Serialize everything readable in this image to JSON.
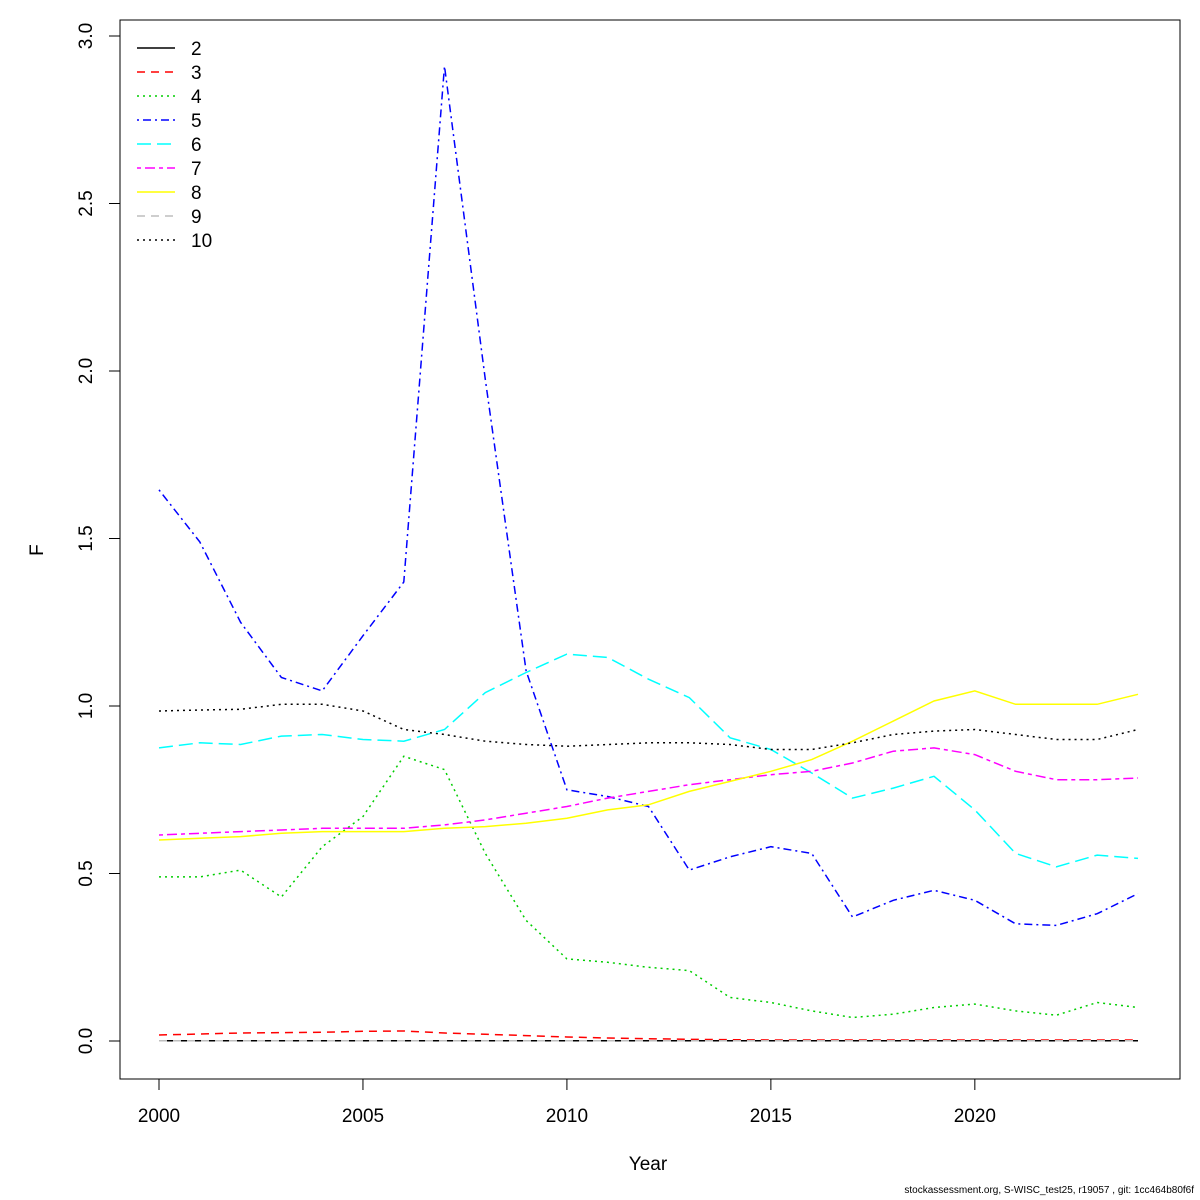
{
  "footer": "stockassessment.org, S-WISC_test25, r19057 , git: 1cc464b80f6f",
  "chart_data": {
    "type": "line",
    "title": "",
    "xlabel": "Year",
    "ylabel": "F",
    "xlim": [
      2000,
      2024
    ],
    "ylim": [
      0,
      3
    ],
    "xticks": [
      2000,
      2005,
      2010,
      2015,
      2020
    ],
    "yticks": [
      "0.0",
      "0.5",
      "1.0",
      "1.5",
      "2.0",
      "2.5",
      "3.0"
    ],
    "grid": false,
    "legend_position": "top-left",
    "x": [
      2000,
      2001,
      2002,
      2003,
      2004,
      2005,
      2006,
      2007,
      2008,
      2009,
      2010,
      2011,
      2012,
      2013,
      2014,
      2015,
      2016,
      2017,
      2018,
      2019,
      2020,
      2021,
      2022,
      2023,
      2024
    ],
    "series": [
      {
        "name": "2",
        "color": "#000000",
        "dash": "solid",
        "values": [
          0.001,
          0.001,
          0.001,
          0.001,
          0.001,
          0.001,
          0.001,
          0.001,
          0.001,
          0.001,
          0.001,
          0.001,
          0.001,
          0.001,
          0.001,
          0.001,
          0.001,
          0.001,
          0.001,
          0.001,
          0.001,
          0.001,
          0.001,
          0.001,
          0.001
        ]
      },
      {
        "name": "3",
        "color": "#ff0000",
        "dash": "dashed",
        "values": [
          0.018,
          0.021,
          0.024,
          0.025,
          0.026,
          0.029,
          0.03,
          0.024,
          0.02,
          0.016,
          0.012,
          0.009,
          0.007,
          0.005,
          0.004,
          0.003,
          0.003,
          0.003,
          0.003,
          0.003,
          0.003,
          0.003,
          0.003,
          0.003,
          0.003
        ]
      },
      {
        "name": "4",
        "color": "#00cd00",
        "dash": "dotted",
        "values": [
          0.49,
          0.49,
          0.51,
          0.43,
          0.58,
          0.67,
          0.85,
          0.81,
          0.56,
          0.36,
          0.245,
          0.235,
          0.22,
          0.21,
          0.13,
          0.115,
          0.09,
          0.07,
          0.08,
          0.1,
          0.11,
          0.09,
          0.077,
          0.115,
          0.1
        ]
      },
      {
        "name": "5",
        "color": "#0000ff",
        "dash": "dotdash",
        "values": [
          1.645,
          1.49,
          1.25,
          1.085,
          1.045,
          1.21,
          1.37,
          2.91,
          1.975,
          1.105,
          0.75,
          0.73,
          0.7,
          0.51,
          0.55,
          0.58,
          0.56,
          0.37,
          0.42,
          0.45,
          0.42,
          0.35,
          0.345,
          0.38,
          0.44
        ]
      },
      {
        "name": "6",
        "color": "#00ffff",
        "dash": "longdash",
        "values": [
          0.875,
          0.89,
          0.885,
          0.91,
          0.915,
          0.9,
          0.895,
          0.93,
          1.04,
          1.1,
          1.155,
          1.145,
          1.08,
          1.025,
          0.905,
          0.87,
          0.8,
          0.725,
          0.755,
          0.79,
          0.69,
          0.56,
          0.52,
          0.555,
          0.545
        ]
      },
      {
        "name": "7",
        "color": "#ff00ff",
        "dash": "twodash",
        "values": [
          0.615,
          0.62,
          0.625,
          0.63,
          0.635,
          0.635,
          0.635,
          0.645,
          0.66,
          0.68,
          0.7,
          0.725,
          0.745,
          0.765,
          0.78,
          0.795,
          0.805,
          0.83,
          0.865,
          0.875,
          0.855,
          0.805,
          0.78,
          0.78,
          0.785
        ]
      },
      {
        "name": "8",
        "color": "#ffff00",
        "dash": "solid",
        "values": [
          0.6,
          0.605,
          0.61,
          0.62,
          0.625,
          0.625,
          0.625,
          0.635,
          0.64,
          0.65,
          0.665,
          0.69,
          0.705,
          0.745,
          0.775,
          0.805,
          0.84,
          0.895,
          0.955,
          1.015,
          1.045,
          1.005,
          1.005,
          1.005,
          1.035
        ]
      },
      {
        "name": "9",
        "color": "#bebebe",
        "dash": "dashed",
        "values": [
          0.001,
          0.001,
          0.001,
          0.001,
          0.001,
          0.001,
          0.001,
          0.001,
          0.001,
          0.001,
          0.001,
          0.001,
          0.001,
          0.001,
          0.001,
          0.001,
          0.001,
          0.001,
          0.001,
          0.001,
          0.001,
          0.001,
          0.001,
          0.001,
          0.001
        ]
      },
      {
        "name": "10",
        "color": "#000000",
        "dash": "dotted",
        "values": [
          0.985,
          0.988,
          0.99,
          1.005,
          1.005,
          0.985,
          0.93,
          0.915,
          0.895,
          0.885,
          0.88,
          0.885,
          0.89,
          0.89,
          0.885,
          0.87,
          0.87,
          0.89,
          0.915,
          0.925,
          0.93,
          0.915,
          0.9,
          0.9,
          0.93
        ]
      }
    ]
  }
}
